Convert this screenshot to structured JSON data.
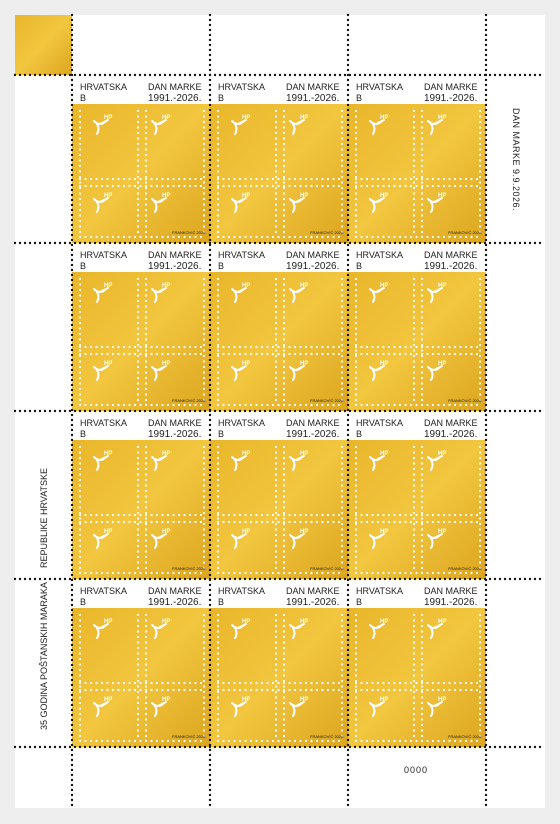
{
  "sheet": {
    "margin_right_text": "DAN MARKE  9.9.2026.",
    "margin_left_text_1": "REPUBLIKE HRVATSKE",
    "margin_left_text_2": "35 GODINA POŠTANSKIH MARAKA",
    "sheet_number": "0000"
  },
  "stamps": [
    {
      "country": "HRVATSKA",
      "value": "B",
      "title": "DAN MARKE",
      "years": "1991.-2026.",
      "designer": "FRANKOVIĆ 2026."
    },
    {
      "country": "HRVATSKA",
      "value": "B",
      "title": "DAN MARKE",
      "years": "1991.-2026.",
      "designer": "FRANKOVIĆ 2026."
    },
    {
      "country": "HRVATSKA",
      "value": "B",
      "title": "DAN MARKE",
      "years": "1991.-2026.",
      "designer": "FRANKOVIĆ 2026."
    },
    {
      "country": "HRVATSKA",
      "value": "B",
      "title": "DAN MARKE",
      "years": "1991.-2026.",
      "designer": "FRANKOVIĆ 2026."
    },
    {
      "country": "HRVATSKA",
      "value": "B",
      "title": "DAN MARKE",
      "years": "1991.-2026.",
      "designer": "FRANKOVIĆ 2026."
    },
    {
      "country": "HRVATSKA",
      "value": "B",
      "title": "DAN MARKE",
      "years": "1991.-2026.",
      "designer": "FRANKOVIĆ 2026."
    },
    {
      "country": "HRVATSKA",
      "value": "B",
      "title": "DAN MARKE",
      "years": "1991.-2026.",
      "designer": "FRANKOVIĆ 2026."
    },
    {
      "country": "HRVATSKA",
      "value": "B",
      "title": "DAN MARKE",
      "years": "1991.-2026.",
      "designer": "FRANKOVIĆ 2026."
    },
    {
      "country": "HRVATSKA",
      "value": "B",
      "title": "DAN MARKE",
      "years": "1991.-2026.",
      "designer": "FRANKOVIĆ 2026."
    },
    {
      "country": "HRVATSKA",
      "value": "B",
      "title": "DAN MARKE",
      "years": "1991.-2026.",
      "designer": "FRANKOVIĆ 2026."
    },
    {
      "country": "HRVATSKA",
      "value": "B",
      "title": "DAN MARKE",
      "years": "1991.-2026.",
      "designer": "FRANKOVIĆ 2026."
    },
    {
      "country": "HRVATSKA",
      "value": "B",
      "title": "DAN MARKE",
      "years": "1991.-2026.",
      "designer": "FRANKOVIĆ 2026."
    }
  ]
}
